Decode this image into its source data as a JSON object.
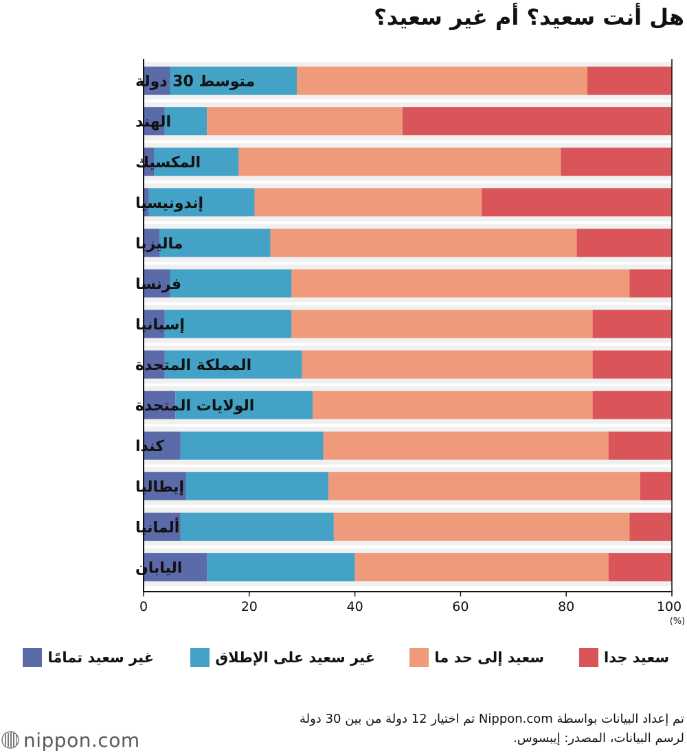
{
  "title": "هل أنت سعيد؟ أم غير سعيد؟",
  "colors": {
    "completely_unhappy": "#5b6aa8",
    "not_very_happy": "#43a2c6",
    "rather_happy": "#f09a7c",
    "very_happy": "#d9555a",
    "axis": "#111111"
  },
  "legend": [
    {
      "key": "very_happy",
      "label": "سعيد جدا"
    },
    {
      "key": "rather_happy",
      "label": "سعيد إلى حد ما"
    },
    {
      "key": "not_very_happy",
      "label": "غير سعيد على الإطلاق"
    },
    {
      "key": "completely_unhappy",
      "label": "غير سعيد تمامًا"
    }
  ],
  "chart_data": {
    "type": "bar",
    "orientation": "horizontal",
    "stacked": true,
    "title": "هل أنت سعيد؟ أم غير سعيد؟",
    "xlabel": "",
    "x_unit_label": "(%)",
    "xlim": [
      0,
      100
    ],
    "xticks": [
      0,
      20,
      40,
      60,
      80,
      100
    ],
    "categories": [
      "متوسط 30 دولة",
      "الهند",
      "المكسيك",
      "إندونيسيا",
      "ماليزيا",
      "فرنسا",
      "إسبانيا",
      "المملكة المتحدة",
      "الولايات المتحدة",
      "كندا",
      "إيطاليا",
      "ألمانيا",
      "اليابان"
    ],
    "series": [
      {
        "name": "غير سعيد تمامًا",
        "key": "completely_unhappy",
        "values": [
          5,
          4,
          2,
          1,
          3,
          5,
          4,
          4,
          6,
          7,
          8,
          7,
          12
        ]
      },
      {
        "name": "غير سعيد على الإطلاق",
        "key": "not_very_happy",
        "values": [
          24,
          8,
          16,
          20,
          21,
          23,
          24,
          26,
          26,
          27,
          27,
          29,
          28
        ]
      },
      {
        "name": "سعيد إلى حد ما",
        "key": "rather_happy",
        "values": [
          55,
          37,
          61,
          43,
          58,
          64,
          57,
          55,
          53,
          54,
          59,
          56,
          48
        ]
      },
      {
        "name": "سعيد جدا",
        "key": "very_happy",
        "values": [
          16,
          51,
          21,
          36,
          18,
          8,
          15,
          15,
          15,
          12,
          6,
          8,
          12
        ]
      }
    ]
  },
  "footnote": {
    "line1": "تم إعداد البيانات بواسطة Nippon.com تم اختيار 12 دولة من بين 30 دولة",
    "line2": "لرسم البيانات، المصدر: إيبسوس."
  },
  "logo": {
    "text": "nippon.com",
    "icon": "nippon-logo-icon"
  }
}
